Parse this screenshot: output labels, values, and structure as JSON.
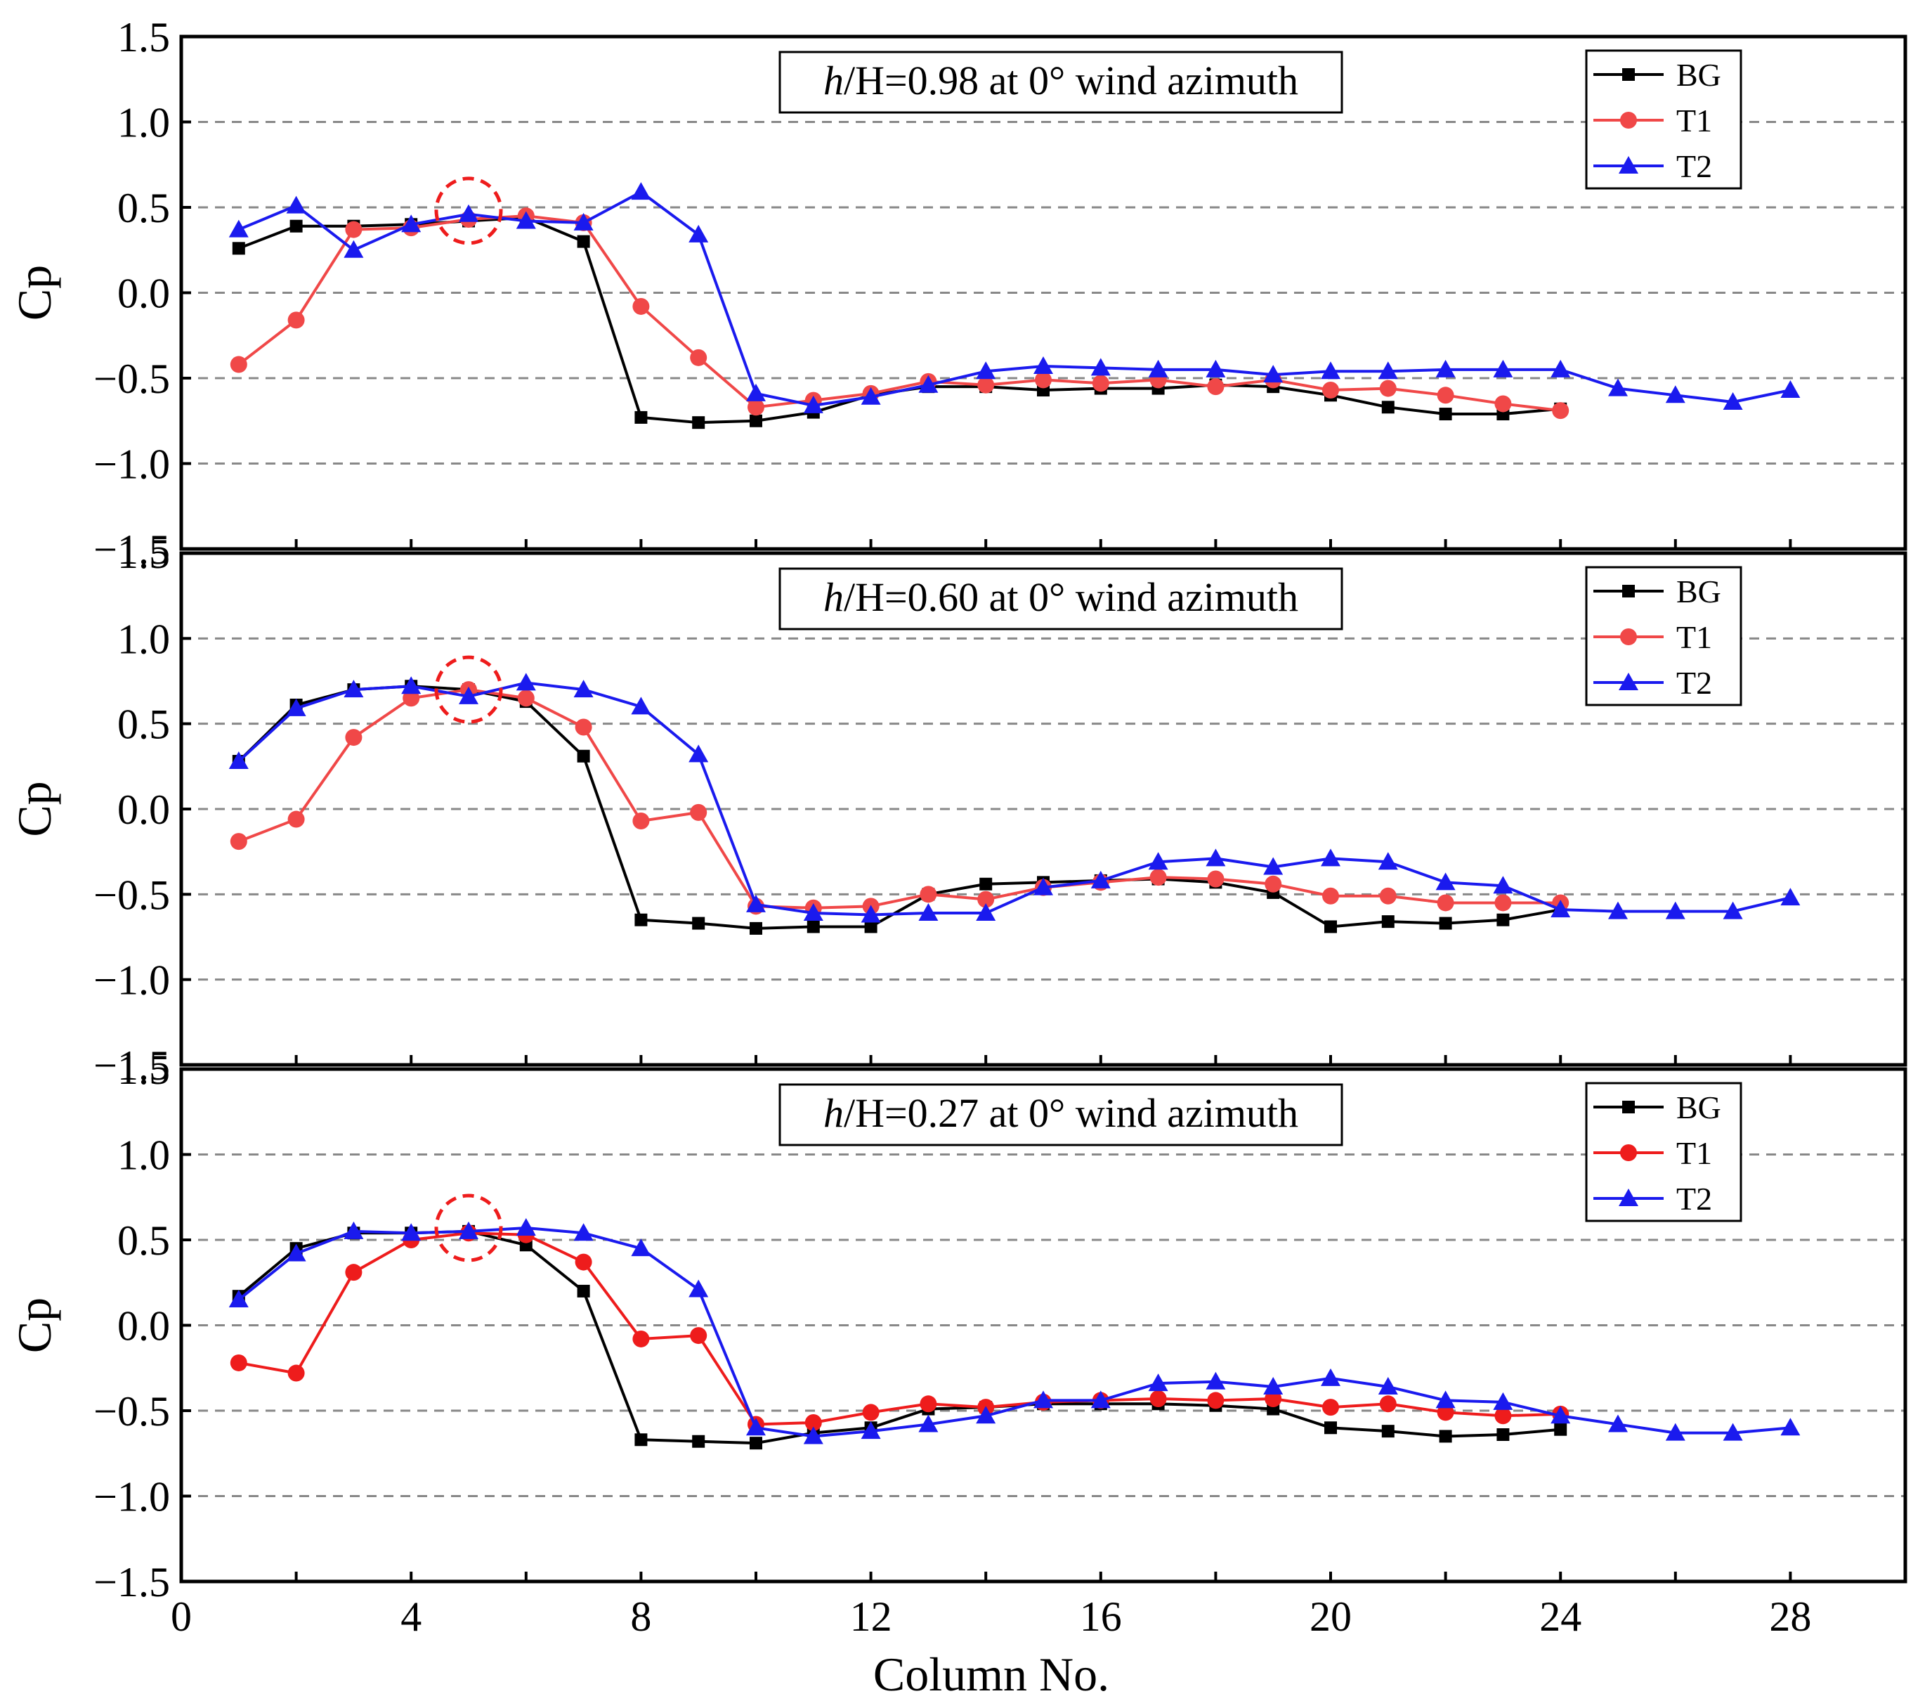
{
  "chart_data": {
    "type": "line",
    "xlabel": "Column No.",
    "ylabel": "Cp",
    "xlim": [
      0,
      30
    ],
    "ylim": [
      -1.5,
      1.5
    ],
    "xticks": [
      0,
      4,
      8,
      12,
      16,
      20,
      24,
      28
    ],
    "xtick_labels": [
      "0",
      "4",
      "8",
      "12",
      "16",
      "20",
      "24",
      "28"
    ],
    "yticks": [
      -1.5,
      -1.0,
      -0.5,
      0.0,
      0.5,
      1.0,
      1.5
    ],
    "ytick_labels": [
      "−1.5",
      "−1.0",
      "−0.5",
      "0.0",
      "0.5",
      "1.0",
      "1.5"
    ],
    "grid": "dashed horizontal at ±1.0, ±0.5, 0.0",
    "legend_position": "top-right",
    "panels": [
      {
        "title_italic": "h",
        "title_rest": "/H=0.98 at 0° wind azimuth",
        "highlight": {
          "x": 5,
          "y": 0.48
        },
        "series": [
          {
            "name": "BG",
            "color": "#000000",
            "marker": "square",
            "x": [
              1,
              2,
              3,
              4,
              5,
              6,
              7,
              8,
              9,
              10,
              11,
              12,
              13,
              14,
              15,
              16,
              17,
              18,
              19,
              20,
              21,
              22,
              23,
              24
            ],
            "values": [
              0.26,
              0.39,
              0.39,
              0.4,
              0.42,
              0.44,
              0.3,
              -0.73,
              -0.76,
              -0.75,
              -0.7,
              -0.6,
              -0.55,
              -0.55,
              -0.57,
              -0.56,
              -0.56,
              -0.54,
              -0.55,
              -0.6,
              -0.67,
              -0.71,
              -0.71,
              -0.68
            ]
          },
          {
            "name": "T1",
            "color": "#f04848",
            "marker": "circle",
            "x": [
              1,
              2,
              3,
              4,
              5,
              6,
              7,
              8,
              9,
              10,
              11,
              12,
              13,
              14,
              15,
              16,
              17,
              18,
              19,
              20,
              21,
              22,
              23,
              24
            ],
            "values": [
              -0.42,
              -0.16,
              0.37,
              0.38,
              0.43,
              0.45,
              0.41,
              -0.08,
              -0.38,
              -0.67,
              -0.63,
              -0.59,
              -0.52,
              -0.54,
              -0.51,
              -0.53,
              -0.51,
              -0.55,
              -0.51,
              -0.57,
              -0.56,
              -0.6,
              -0.65,
              -0.69
            ]
          },
          {
            "name": "T2",
            "color": "#1a1aee",
            "marker": "triangle",
            "x": [
              1,
              2,
              3,
              4,
              5,
              6,
              7,
              8,
              9,
              10,
              11,
              12,
              13,
              14,
              15,
              16,
              17,
              18,
              19,
              20,
              21,
              22,
              23,
              24,
              25,
              26,
              27,
              28
            ],
            "values": [
              0.37,
              0.51,
              0.25,
              0.4,
              0.46,
              0.42,
              0.41,
              0.59,
              0.34,
              -0.59,
              -0.66,
              -0.61,
              -0.54,
              -0.46,
              -0.43,
              -0.44,
              -0.45,
              -0.45,
              -0.48,
              -0.46,
              -0.46,
              -0.45,
              -0.45,
              -0.45,
              -0.56,
              -0.6,
              -0.64,
              -0.57
            ]
          }
        ]
      },
      {
        "title_italic": "h",
        "title_rest": "/H=0.60 at 0° wind azimuth",
        "highlight": {
          "x": 5,
          "y": 0.7
        },
        "series": [
          {
            "name": "BG",
            "color": "#000000",
            "marker": "square",
            "x": [
              1,
              2,
              3,
              4,
              5,
              6,
              7,
              8,
              9,
              10,
              11,
              12,
              13,
              14,
              15,
              16,
              17,
              18,
              19,
              20,
              21,
              22,
              23,
              24
            ],
            "values": [
              0.28,
              0.61,
              0.7,
              0.72,
              0.7,
              0.63,
              0.31,
              -0.65,
              -0.67,
              -0.7,
              -0.69,
              -0.69,
              -0.5,
              -0.44,
              -0.43,
              -0.42,
              -0.41,
              -0.43,
              -0.49,
              -0.69,
              -0.66,
              -0.67,
              -0.65,
              -0.59
            ]
          },
          {
            "name": "T1",
            "color": "#f04848",
            "marker": "circle",
            "x": [
              1,
              2,
              3,
              4,
              5,
              6,
              7,
              8,
              9,
              10,
              11,
              12,
              13,
              14,
              15,
              16,
              17,
              18,
              19,
              20,
              21,
              22,
              23,
              24
            ],
            "values": [
              -0.19,
              -0.06,
              0.42,
              0.65,
              0.7,
              0.65,
              0.48,
              -0.07,
              -0.02,
              -0.57,
              -0.58,
              -0.57,
              -0.5,
              -0.53,
              -0.46,
              -0.43,
              -0.4,
              -0.41,
              -0.44,
              -0.51,
              -0.51,
              -0.55,
              -0.55,
              -0.55
            ]
          },
          {
            "name": "T2",
            "color": "#1a1aee",
            "marker": "triangle",
            "x": [
              1,
              2,
              3,
              4,
              5,
              6,
              7,
              8,
              9,
              10,
              11,
              12,
              13,
              14,
              15,
              16,
              17,
              18,
              19,
              20,
              21,
              22,
              23,
              24,
              25,
              26,
              27,
              28
            ],
            "values": [
              0.28,
              0.59,
              0.7,
              0.72,
              0.66,
              0.74,
              0.7,
              0.6,
              0.32,
              -0.56,
              -0.61,
              -0.62,
              -0.61,
              -0.61,
              -0.46,
              -0.42,
              -0.31,
              -0.29,
              -0.34,
              -0.29,
              -0.31,
              -0.43,
              -0.45,
              -0.59,
              -0.6,
              -0.6,
              -0.6,
              -0.52
            ]
          }
        ]
      },
      {
        "title_italic": "h",
        "title_rest": "/H=0.27 at 0° wind azimuth",
        "highlight": {
          "x": 5,
          "y": 0.57
        },
        "series": [
          {
            "name": "BG",
            "color": "#000000",
            "marker": "square",
            "x": [
              1,
              2,
              3,
              4,
              5,
              6,
              7,
              8,
              9,
              10,
              11,
              12,
              13,
              14,
              15,
              16,
              17,
              18,
              19,
              20,
              21,
              22,
              23,
              24
            ],
            "values": [
              0.17,
              0.45,
              0.54,
              0.54,
              0.55,
              0.47,
              0.2,
              -0.67,
              -0.68,
              -0.69,
              -0.63,
              -0.6,
              -0.49,
              -0.48,
              -0.46,
              -0.46,
              -0.46,
              -0.47,
              -0.49,
              -0.6,
              -0.62,
              -0.65,
              -0.64,
              -0.61
            ]
          },
          {
            "name": "T1",
            "color": "#ee1c1c",
            "marker": "circle",
            "x": [
              1,
              2,
              3,
              4,
              5,
              6,
              7,
              8,
              9,
              10,
              11,
              12,
              13,
              14,
              15,
              16,
              17,
              18,
              19,
              20,
              21,
              22,
              23,
              24
            ],
            "values": [
              -0.22,
              -0.28,
              0.31,
              0.5,
              0.54,
              0.53,
              0.37,
              -0.08,
              -0.06,
              -0.58,
              -0.57,
              -0.51,
              -0.46,
              -0.48,
              -0.45,
              -0.44,
              -0.43,
              -0.44,
              -0.43,
              -0.48,
              -0.46,
              -0.51,
              -0.53,
              -0.52
            ]
          },
          {
            "name": "T2",
            "color": "#1a1aee",
            "marker": "triangle",
            "x": [
              1,
              2,
              3,
              4,
              5,
              6,
              7,
              8,
              9,
              10,
              11,
              12,
              13,
              14,
              15,
              16,
              17,
              18,
              19,
              20,
              21,
              22,
              23,
              24,
              25,
              26,
              27,
              28
            ],
            "values": [
              0.15,
              0.42,
              0.55,
              0.54,
              0.55,
              0.57,
              0.54,
              0.45,
              0.21,
              -0.6,
              -0.65,
              -0.62,
              -0.58,
              -0.53,
              -0.44,
              -0.44,
              -0.34,
              -0.33,
              -0.36,
              -0.31,
              -0.36,
              -0.44,
              -0.45,
              -0.53,
              -0.58,
              -0.63,
              -0.63,
              -0.6
            ]
          }
        ]
      }
    ]
  }
}
